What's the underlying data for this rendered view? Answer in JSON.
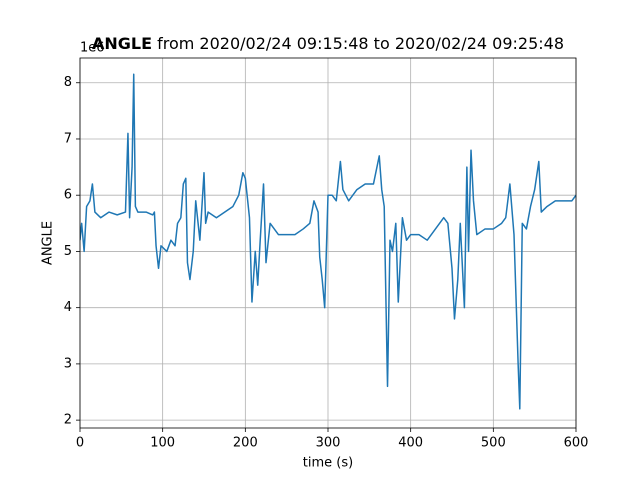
{
  "chart_data": {
    "type": "line",
    "title_bold": "ANGLE",
    "title": "from 2020/02/24 09:15:48 to 2020/02/24 09:25:48",
    "offset_text": "1e6",
    "xlabel": "time (s)",
    "ylabel": "ANGLE",
    "color": "#1f77b4",
    "grid": true,
    "xlim": [
      0,
      600
    ],
    "xticks": [
      0,
      100,
      200,
      300,
      400,
      500,
      600
    ],
    "ylim": [
      1.86,
      8.44
    ],
    "yticks": [
      2,
      3,
      4,
      5,
      6,
      7,
      8
    ],
    "x": [
      0,
      2,
      5,
      8,
      12,
      15,
      18,
      25,
      35,
      45,
      55,
      58,
      60,
      63,
      65,
      67,
      70,
      80,
      88,
      90,
      92,
      95,
      98,
      105,
      110,
      115,
      118,
      122,
      125,
      128,
      130,
      133,
      137,
      140,
      145,
      150,
      152,
      155,
      165,
      175,
      185,
      192,
      197,
      200,
      205,
      208,
      212,
      215,
      218,
      222,
      225,
      230,
      240,
      250,
      260,
      270,
      278,
      283,
      288,
      290,
      293,
      296,
      300,
      305,
      310,
      315,
      318,
      325,
      335,
      345,
      355,
      362,
      365,
      368,
      372,
      375,
      378,
      382,
      385,
      390,
      395,
      400,
      410,
      420,
      430,
      440,
      445,
      450,
      453,
      457,
      460,
      465,
      468,
      470,
      473,
      476,
      480,
      490,
      500,
      510,
      515,
      520,
      525,
      530,
      532,
      535,
      540,
      545,
      550,
      555,
      558,
      565,
      575,
      585,
      595,
      600
    ],
    "values": [
      5.2,
      5.5,
      5.0,
      5.8,
      5.9,
      6.2,
      5.7,
      5.6,
      5.7,
      5.65,
      5.7,
      7.1,
      5.6,
      6.5,
      8.15,
      5.8,
      5.7,
      5.7,
      5.65,
      5.7,
      5.1,
      4.7,
      5.1,
      5.0,
      5.2,
      5.1,
      5.5,
      5.6,
      6.2,
      6.3,
      4.8,
      4.5,
      5.0,
      5.9,
      5.2,
      6.4,
      5.5,
      5.7,
      5.6,
      5.7,
      5.8,
      6.0,
      6.4,
      6.3,
      5.6,
      4.1,
      5.0,
      4.4,
      5.2,
      6.2,
      4.8,
      5.5,
      5.3,
      5.3,
      5.3,
      5.4,
      5.5,
      5.9,
      5.7,
      4.9,
      4.5,
      4.0,
      6.0,
      6.0,
      5.9,
      6.6,
      6.1,
      5.9,
      6.1,
      6.2,
      6.2,
      6.7,
      6.1,
      5.8,
      2.6,
      5.2,
      5.0,
      5.5,
      4.1,
      5.6,
      5.2,
      5.3,
      5.3,
      5.2,
      5.4,
      5.6,
      5.5,
      4.7,
      3.8,
      4.5,
      5.5,
      4.0,
      6.5,
      5.0,
      6.8,
      5.9,
      5.3,
      5.4,
      5.4,
      5.5,
      5.6,
      6.2,
      5.3,
      3.0,
      2.2,
      5.5,
      5.4,
      5.8,
      6.1,
      6.6,
      5.7,
      5.8,
      5.9,
      5.9,
      5.9,
      6.0
    ]
  }
}
